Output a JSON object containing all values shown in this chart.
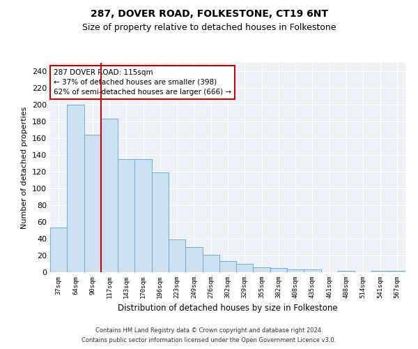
{
  "title1": "287, DOVER ROAD, FOLKESTONE, CT19 6NT",
  "title2": "Size of property relative to detached houses in Folkestone",
  "xlabel": "Distribution of detached houses by size in Folkestone",
  "ylabel": "Number of detached properties",
  "categories": [
    "37sqm",
    "64sqm",
    "90sqm",
    "117sqm",
    "143sqm",
    "170sqm",
    "196sqm",
    "223sqm",
    "249sqm",
    "276sqm",
    "302sqm",
    "329sqm",
    "355sqm",
    "382sqm",
    "408sqm",
    "435sqm",
    "461sqm",
    "488sqm",
    "514sqm",
    "541sqm",
    "567sqm"
  ],
  "values": [
    53,
    200,
    164,
    183,
    135,
    135,
    119,
    39,
    30,
    21,
    13,
    10,
    6,
    5,
    3,
    3,
    0,
    2,
    0,
    2,
    2
  ],
  "bar_color": "#cde0f0",
  "bar_edge_color": "#6aaed6",
  "vline_color": "#c00000",
  "vline_pos": 2.5,
  "annotation_text": "287 DOVER ROAD: 115sqm\n← 37% of detached houses are smaller (398)\n62% of semi-detached houses are larger (666) →",
  "annotation_box_color": "white",
  "annotation_box_edge": "#c00000",
  "ylim": [
    0,
    250
  ],
  "yticks": [
    0,
    20,
    40,
    60,
    80,
    100,
    120,
    140,
    160,
    180,
    200,
    220,
    240
  ],
  "background_color": "#eef2f8",
  "footer1": "Contains HM Land Registry data © Crown copyright and database right 2024.",
  "footer2": "Contains public sector information licensed under the Open Government Licence v3.0.",
  "title1_fontsize": 10,
  "title2_fontsize": 9,
  "grid_color": "#ffffff"
}
